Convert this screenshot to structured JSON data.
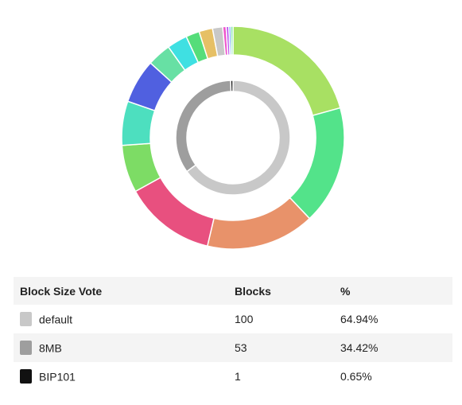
{
  "chart_data": {
    "type": "pie",
    "outer_ring": {
      "values": [
        21,
        17.5,
        16,
        13.5,
        7,
        6.5,
        6.5,
        3.5,
        3,
        2,
        2,
        1.5,
        0.5,
        0.4,
        0.3,
        0.3
      ],
      "colors": [
        "#a8e063",
        "#53e38a",
        "#e8926a",
        "#e8507f",
        "#7ddc65",
        "#4ddfbf",
        "#5060e0",
        "#67e0a4",
        "#3fe0e2",
        "#55dd7a",
        "#e6c066",
        "#c8c8c8",
        "#ee55cc",
        "#bb55ee",
        "#5599ee",
        "#55dd88"
      ]
    },
    "inner_ring": {
      "categories": [
        "default",
        "8MB",
        "BIP101"
      ],
      "values": [
        100,
        53,
        1
      ],
      "colors": [
        "#c8c8c8",
        "#9e9e9e",
        "#111111"
      ]
    }
  },
  "table": {
    "headers": {
      "vote": "Block Size Vote",
      "blocks": "Blocks",
      "percent": "%"
    },
    "rows": [
      {
        "label": "default",
        "blocks": "100",
        "percent": "64.94%",
        "color": "#c8c8c8"
      },
      {
        "label": "8MB",
        "blocks": "53",
        "percent": "34.42%",
        "color": "#9e9e9e"
      },
      {
        "label": "BIP101",
        "blocks": "1",
        "percent": "0.65%",
        "color": "#111111"
      }
    ]
  }
}
